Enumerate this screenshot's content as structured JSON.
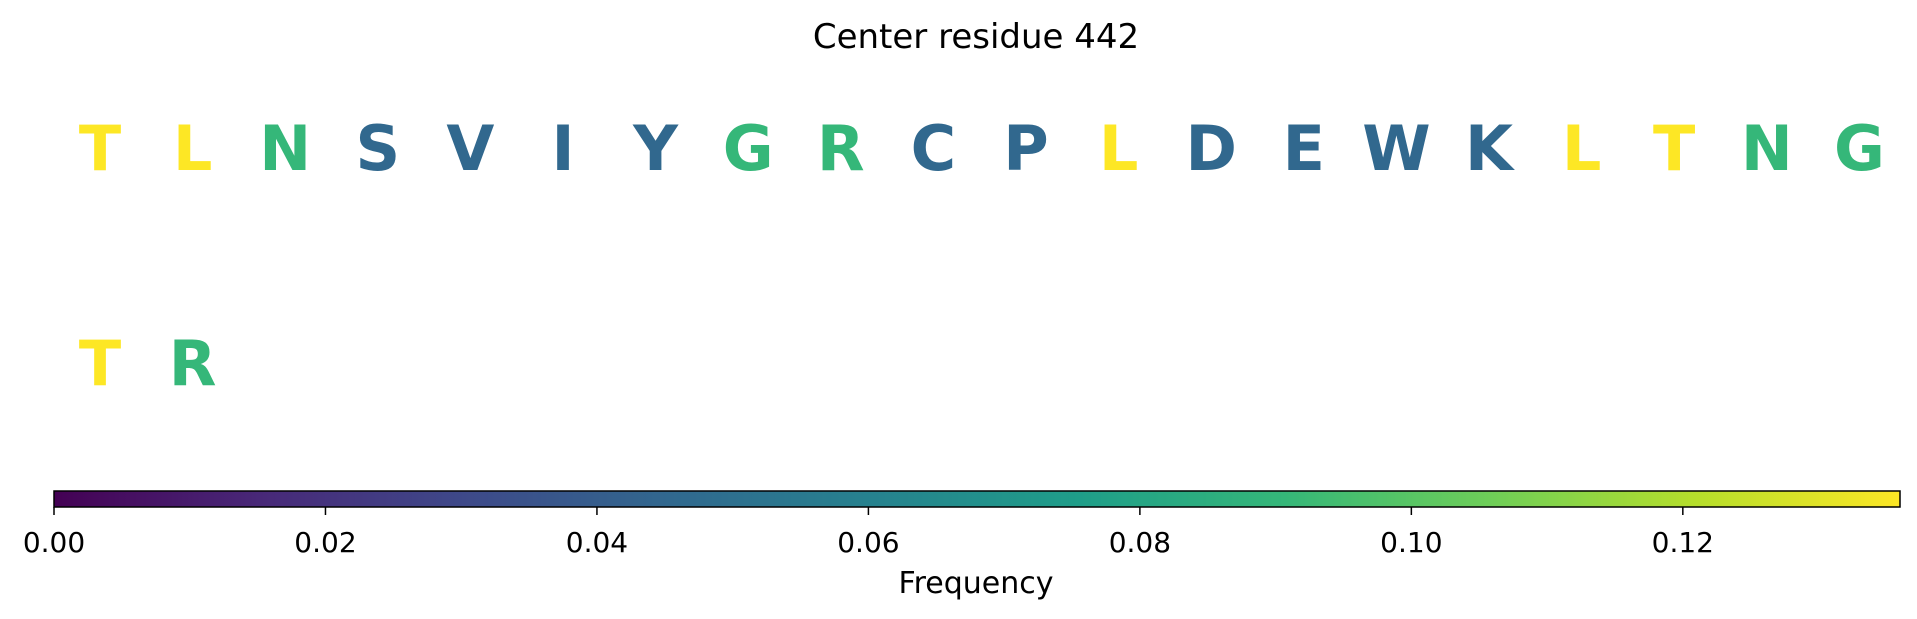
{
  "chart_data": {
    "type": "table",
    "title": "Center residue 442",
    "residues": [
      {
        "letter": "T",
        "color": "#fde725"
      },
      {
        "letter": "L",
        "color": "#fde725"
      },
      {
        "letter": "N",
        "color": "#35b779"
      },
      {
        "letter": "S",
        "color": "#31688e"
      },
      {
        "letter": "V",
        "color": "#31688e"
      },
      {
        "letter": "I",
        "color": "#31688e"
      },
      {
        "letter": "Y",
        "color": "#31688e"
      },
      {
        "letter": "G",
        "color": "#35b779"
      },
      {
        "letter": "R",
        "color": "#35b779"
      },
      {
        "letter": "C",
        "color": "#31688e"
      },
      {
        "letter": "P",
        "color": "#31688e"
      },
      {
        "letter": "L",
        "color": "#fde725"
      },
      {
        "letter": "D",
        "color": "#31688e"
      },
      {
        "letter": "E",
        "color": "#31688e"
      },
      {
        "letter": "W",
        "color": "#31688e"
      },
      {
        "letter": "K",
        "color": "#31688e"
      },
      {
        "letter": "L",
        "color": "#fde725"
      },
      {
        "letter": "T",
        "color": "#fde725"
      },
      {
        "letter": "N",
        "color": "#35b779"
      },
      {
        "letter": "G",
        "color": "#35b779"
      },
      {
        "letter": "T",
        "color": "#fde725"
      },
      {
        "letter": "R",
        "color": "#35b779"
      }
    ],
    "colorbar": {
      "label": "Frequency",
      "colormap": "viridis",
      "range": [
        0,
        0.136
      ],
      "ticks": [
        0.0,
        0.02,
        0.04,
        0.06,
        0.08,
        0.1,
        0.12
      ],
      "tick_labels": [
        "0.00",
        "0.02",
        "0.04",
        "0.06",
        "0.08",
        "0.10",
        "0.12"
      ],
      "colors": [
        "#440154",
        "#482878",
        "#3e4989",
        "#31688e",
        "#26828e",
        "#1f9e89",
        "#35b779",
        "#6ece58",
        "#b5de2b",
        "#fde725"
      ]
    }
  }
}
